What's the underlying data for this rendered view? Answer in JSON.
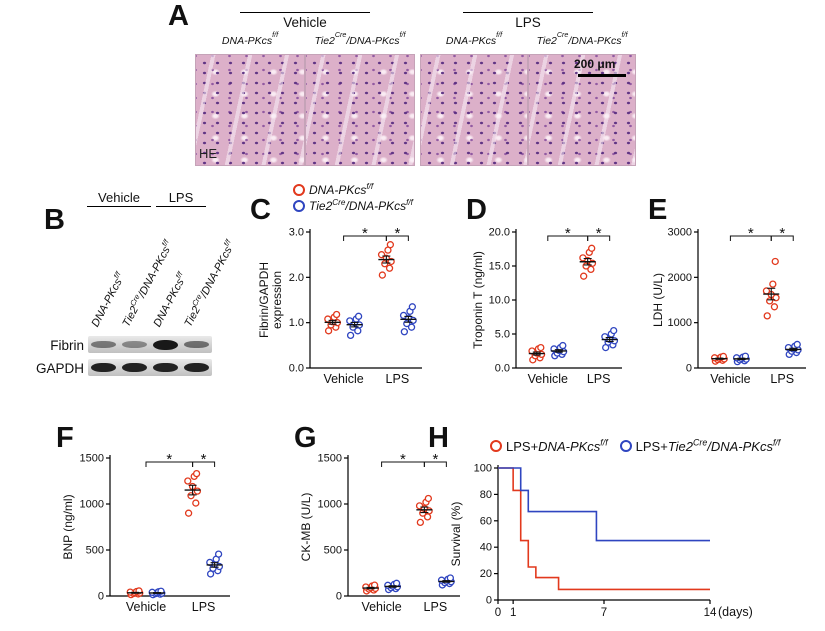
{
  "panels": {
    "a": "A",
    "b": "B",
    "c": "C",
    "d": "D",
    "e": "E",
    "f": "F",
    "g": "G",
    "h": "H"
  },
  "colors": {
    "red": "#e2391d",
    "blue": "#2f45c0"
  },
  "genotypes": {
    "flox": {
      "parts": [
        {
          "t": "DNA-PKcs"
        },
        {
          "t": "f/f",
          "sup": true
        }
      ]
    },
    "tie2": {
      "parts": [
        {
          "t": "Tie2"
        },
        {
          "t": "Cre",
          "sup": true
        },
        {
          "t": "/DNA-PKcs"
        },
        {
          "t": "f/f",
          "sup": true
        }
      ]
    }
  },
  "panelA": {
    "groups": [
      "Vehicle",
      "LPS"
    ],
    "scalebar": "200 μm",
    "stain": "HE"
  },
  "panelB": {
    "groups": [
      "Vehicle",
      "LPS"
    ],
    "rows": [
      {
        "label": "Fibrin",
        "bands": [
          0.5,
          0.42,
          1,
          0.55
        ]
      },
      {
        "label": "GAPDH",
        "bands": [
          0.95,
          0.95,
          0.95,
          0.95
        ]
      }
    ]
  },
  "legend_h": {
    "prefix": "LPS+"
  },
  "chart_data": [
    {
      "id": "C",
      "type": "scatter",
      "ylabel_lines": [
        "Fibrin/GAPDH",
        "expression"
      ],
      "ylim": [
        0,
        3
      ],
      "yticks": [
        0,
        1,
        2,
        3
      ],
      "ytick_labels": [
        "0.0",
        "1.0",
        "2.0",
        "3.0"
      ],
      "categories": [
        "Vehicle",
        "LPS"
      ],
      "series": [
        {
          "name": "DNA-PKcs f/f",
          "color": "#e2391d",
          "values": [
            [
              0.82,
              0.9,
              0.95,
              1.0,
              1.02,
              1.08,
              1.12,
              1.18
            ],
            [
              2.05,
              2.2,
              2.3,
              2.35,
              2.42,
              2.5,
              2.6,
              2.72
            ]
          ]
        },
        {
          "name": "Tie2Cre/DNA-PKcs f/f",
          "color": "#2f45c0",
          "values": [
            [
              0.72,
              0.82,
              0.9,
              0.95,
              1.0,
              1.04,
              1.08,
              1.14
            ],
            [
              0.8,
              0.9,
              0.98,
              1.05,
              1.1,
              1.16,
              1.25,
              1.35
            ]
          ]
        }
      ],
      "sig": [
        {
          "a": "0c",
          "b": "1r",
          "label": "*"
        },
        {
          "a": "1r",
          "b": "1b",
          "label": "*"
        }
      ]
    },
    {
      "id": "D",
      "type": "scatter",
      "ylabel_lines": [
        "Troponin T (ng/ml)"
      ],
      "ylim": [
        0,
        20
      ],
      "yticks": [
        0,
        5,
        10,
        15,
        20
      ],
      "ytick_labels": [
        "0.0",
        "5.0",
        "10.0",
        "15.0",
        "20.0"
      ],
      "categories": [
        "Vehicle",
        "LPS"
      ],
      "series": [
        {
          "name": "DNA-PKcs f/f",
          "color": "#e2391d",
          "values": [
            [
              1.2,
              1.5,
              1.8,
              2.0,
              2.2,
              2.5,
              2.8,
              3.0
            ],
            [
              13.5,
              14.5,
              15.0,
              15.4,
              15.8,
              16.2,
              17.0,
              17.6
            ]
          ]
        },
        {
          "name": "Tie2Cre/DNA-PKcs f/f",
          "color": "#2f45c0",
          "values": [
            [
              1.8,
              2.0,
              2.2,
              2.4,
              2.6,
              2.8,
              3.0,
              3.3
            ],
            [
              3.0,
              3.4,
              3.8,
              4.0,
              4.2,
              4.6,
              5.0,
              5.5
            ]
          ]
        }
      ],
      "sig": [
        {
          "a": "0c",
          "b": "1r",
          "label": "*"
        },
        {
          "a": "1r",
          "b": "1b",
          "label": "*"
        }
      ]
    },
    {
      "id": "E",
      "type": "scatter",
      "ylabel_lines": [
        "LDH (U/L)"
      ],
      "ylim": [
        0,
        3000
      ],
      "yticks": [
        0,
        1000,
        2000,
        3000
      ],
      "ytick_labels": [
        "0",
        "1000",
        "2000",
        "3000"
      ],
      "categories": [
        "Vehicle",
        "LPS"
      ],
      "series": [
        {
          "name": "DNA-PKcs f/f",
          "color": "#e2391d",
          "values": [
            [
              150,
              170,
              185,
              200,
              215,
              225,
              240,
              255
            ],
            [
              1150,
              1350,
              1480,
              1550,
              1620,
              1700,
              1850,
              2350
            ]
          ]
        },
        {
          "name": "Tie2Cre/DNA-PKcs f/f",
          "color": "#2f45c0",
          "values": [
            [
              140,
              160,
              180,
              195,
              210,
              225,
              240,
              260
            ],
            [
              300,
              340,
              370,
              400,
              420,
              450,
              480,
              520
            ]
          ]
        }
      ],
      "sig": [
        {
          "a": "0c",
          "b": "1r",
          "label": "*"
        },
        {
          "a": "1r",
          "b": "1b",
          "label": "*"
        }
      ]
    },
    {
      "id": "F",
      "type": "scatter",
      "ylabel_lines": [
        "BNP (ng/ml)"
      ],
      "ylim": [
        0,
        1500
      ],
      "yticks": [
        0,
        500,
        1000,
        1500
      ],
      "ytick_labels": [
        "0",
        "500",
        "1000",
        "1500"
      ],
      "categories": [
        "Vehicle",
        "LPS"
      ],
      "series": [
        {
          "name": "DNA-PKcs f/f",
          "color": "#e2391d",
          "values": [
            [
              15,
              22,
              28,
              32,
              36,
              42,
              48,
              55
            ],
            [
              900,
              1010,
              1090,
              1140,
              1190,
              1250,
              1300,
              1330
            ]
          ]
        },
        {
          "name": "Tie2Cre/DNA-PKcs f/f",
          "color": "#2f45c0",
          "values": [
            [
              14,
              20,
              26,
              30,
              35,
              40,
              46,
              52
            ],
            [
              240,
              275,
              300,
              320,
              345,
              365,
              400,
              455
            ]
          ]
        }
      ],
      "sig": [
        {
          "a": "0c",
          "b": "1r",
          "label": "*"
        },
        {
          "a": "1r",
          "b": "1b",
          "label": "*"
        }
      ]
    },
    {
      "id": "G",
      "type": "scatter",
      "ylabel_lines": [
        "CK-MB (U/L)"
      ],
      "ylim": [
        0,
        1500
      ],
      "yticks": [
        0,
        500,
        1000,
        1500
      ],
      "ytick_labels": [
        "0",
        "500",
        "1000",
        "1500"
      ],
      "categories": [
        "Vehicle",
        "LPS"
      ],
      "series": [
        {
          "name": "DNA-PKcs f/f",
          "color": "#e2391d",
          "values": [
            [
              55,
              65,
              75,
              82,
              90,
              98,
              108,
              118
            ],
            [
              800,
              860,
              900,
              925,
              950,
              980,
              1020,
              1060
            ]
          ]
        },
        {
          "name": "Tie2Cre/DNA-PKcs f/f",
          "color": "#2f45c0",
          "values": [
            [
              70,
              80,
              90,
              100,
              108,
              116,
              126,
              138
            ],
            [
              120,
              135,
              145,
              155,
              162,
              172,
              182,
              196
            ]
          ]
        }
      ],
      "sig": [
        {
          "a": "0c",
          "b": "1r",
          "label": "*"
        },
        {
          "a": "1r",
          "b": "1b",
          "label": "*"
        }
      ]
    },
    {
      "id": "H",
      "type": "step",
      "ylabel_lines": [
        "Survival (%)"
      ],
      "ylim": [
        0,
        100
      ],
      "yticks": [
        0,
        20,
        40,
        60,
        80,
        100
      ],
      "ytick_labels": [
        "0",
        "20",
        "40",
        "60",
        "80",
        "100"
      ],
      "xlim": [
        0,
        14
      ],
      "xticks": [
        0,
        1,
        7,
        14
      ],
      "xtick_labels": [
        "0",
        "1",
        "7",
        "14"
      ],
      "x_unit": "(days)",
      "series": [
        {
          "name": "LPS+DNA-PKcs f/f",
          "color": "#e2391d",
          "points": [
            [
              0,
              100
            ],
            [
              1,
              100
            ],
            [
              1,
              83
            ],
            [
              1.5,
              83
            ],
            [
              1.5,
              45
            ],
            [
              2,
              45
            ],
            [
              2,
              25
            ],
            [
              2.5,
              25
            ],
            [
              2.5,
              17
            ],
            [
              4,
              17
            ],
            [
              4,
              8
            ],
            [
              14,
              8
            ]
          ]
        },
        {
          "name": "LPS+Tie2Cre/DNA-PKcs f/f",
          "color": "#2f45c0",
          "points": [
            [
              0,
              100
            ],
            [
              1.5,
              100
            ],
            [
              1.5,
              83
            ],
            [
              2,
              83
            ],
            [
              2,
              67
            ],
            [
              6.5,
              67
            ],
            [
              6.5,
              45
            ],
            [
              14,
              45
            ]
          ]
        }
      ]
    }
  ]
}
